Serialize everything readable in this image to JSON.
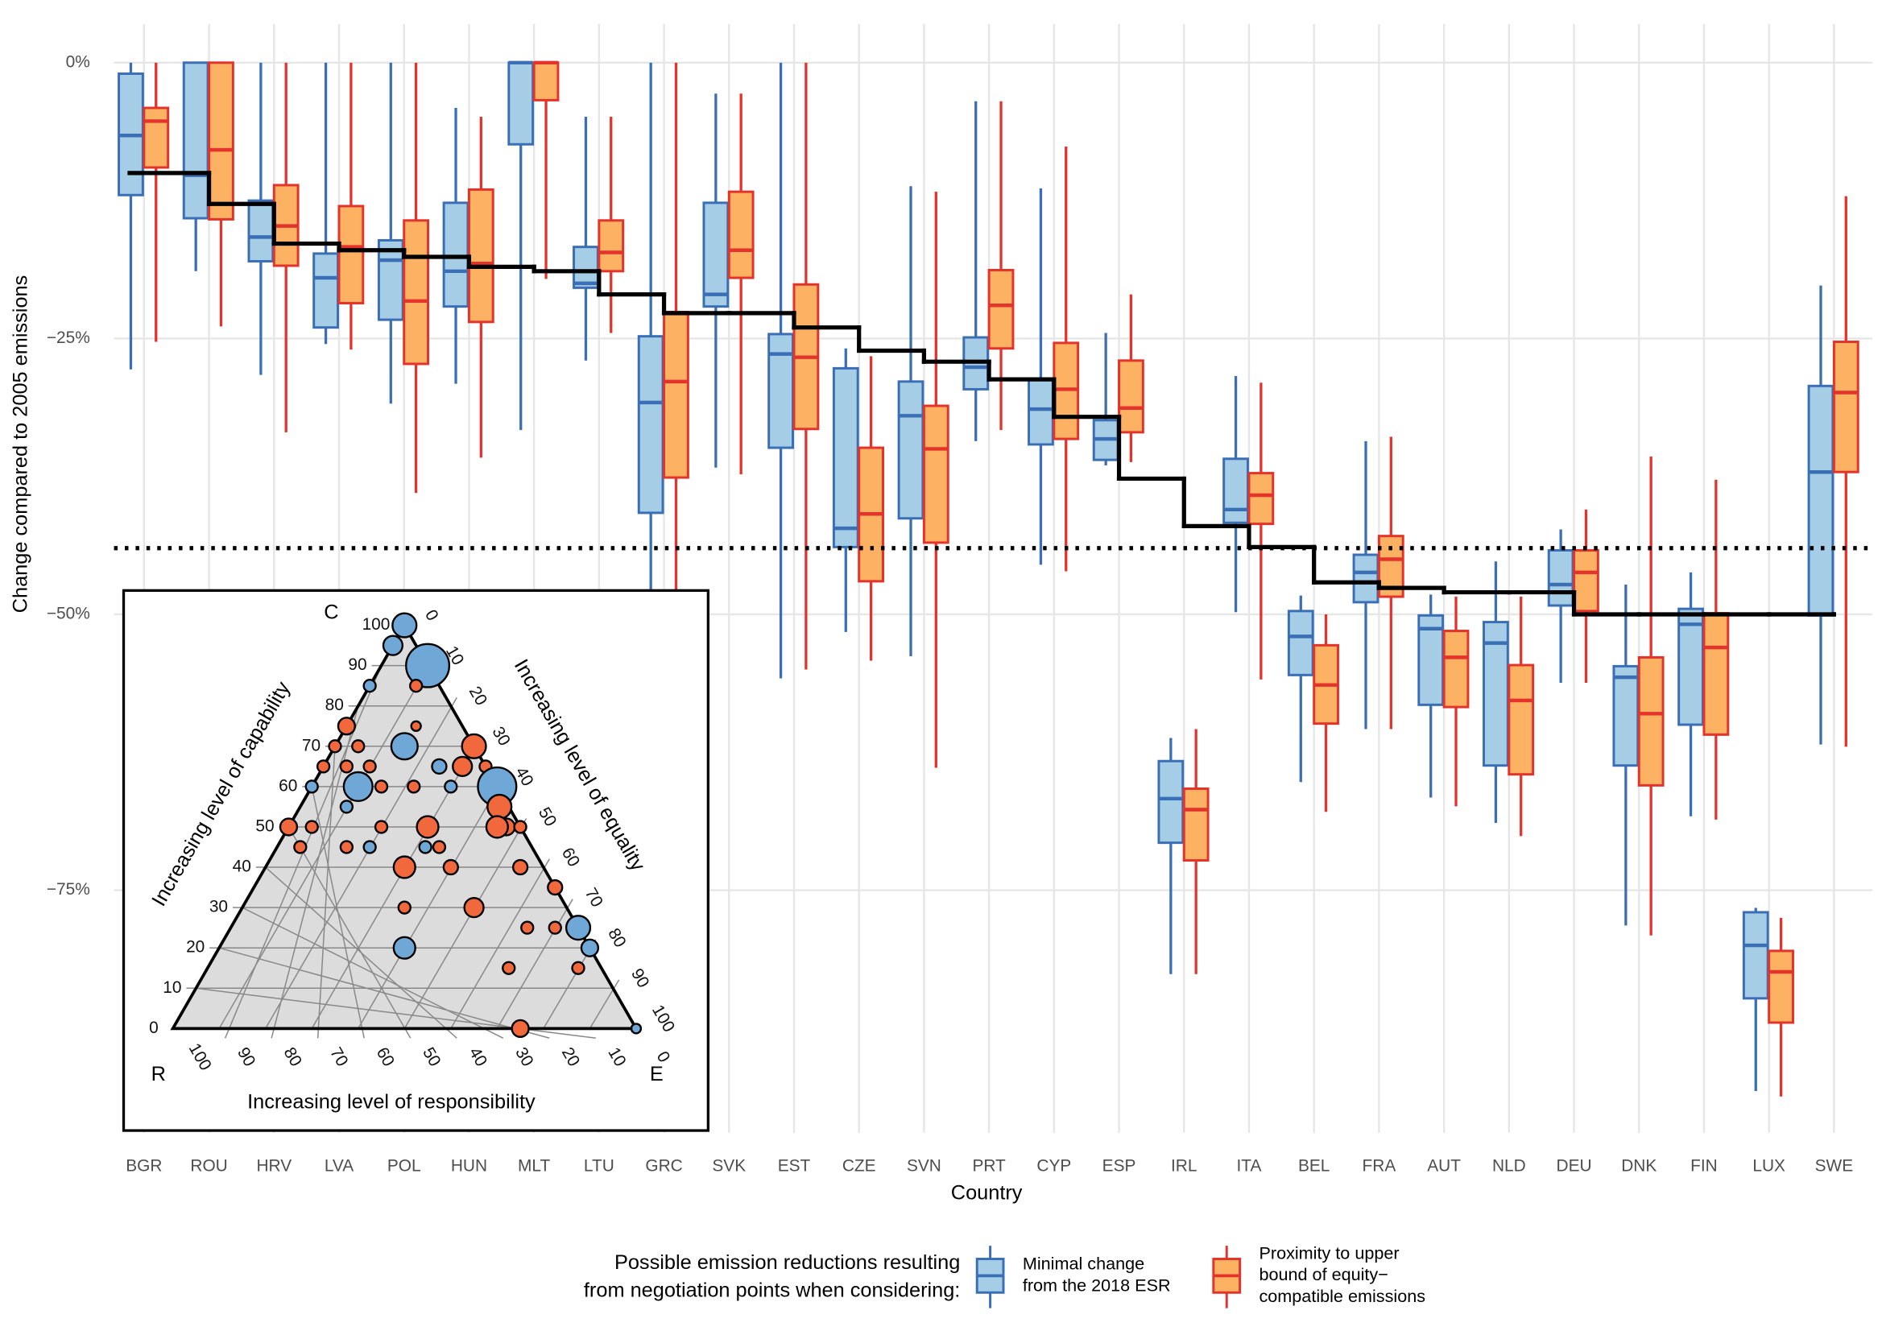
{
  "chart_data": [
    {
      "type": "box",
      "y_label": "Change compared to 2005 emissions",
      "x_label": "Country",
      "legend_title": [
        "Possible emission reductions resulting",
        "from negotiation points when considering:"
      ],
      "categories": [
        "BGR",
        "ROU",
        "HRV",
        "LVA",
        "POL",
        "HUN",
        "MLT",
        "LTU",
        "GRC",
        "SVK",
        "EST",
        "CZE",
        "SVN",
        "PRT",
        "CYP",
        "ESP",
        "IRL",
        "ITA",
        "BEL",
        "FRA",
        "AUT",
        "NLD",
        "DEU",
        "DNK",
        "FIN",
        "LUX",
        "SWE"
      ],
      "ylim": [
        -97,
        3.5
      ],
      "yticks": [
        {
          "value": 0,
          "label": "0%"
        },
        {
          "value": -25,
          "label": "−25%"
        },
        {
          "value": -50,
          "label": "−50%"
        },
        {
          "value": -75,
          "label": "−75%"
        }
      ],
      "grid": true,
      "series": [
        {
          "name": [
            "Minimal change",
            "from the 2018 ESR"
          ],
          "color": "#3a6fb5",
          "fill": "#a6cde6",
          "values": [
            [
              0,
              -1,
              -6.6,
              -12,
              -27.8
            ],
            [
              0,
              0,
              -10.2,
              -14.1,
              -18.9
            ],
            [
              0,
              -12.5,
              -15.8,
              -18,
              -28.3
            ],
            [
              0,
              -17.3,
              -19.5,
              -24,
              -25.5
            ],
            [
              0,
              -16.1,
              -17.9,
              -23.3,
              -30.9
            ],
            [
              -4.1,
              -12.7,
              -18.9,
              -22.1,
              -29.1
            ],
            [
              0,
              0,
              0,
              -7.4,
              -33.3
            ],
            [
              -4.9,
              -16.7,
              -20,
              -20.4,
              -27
            ],
            [
              0,
              -24.8,
              -30.8,
              -40.8,
              -48.2
            ],
            [
              -2.8,
              -12.7,
              -21,
              -22.1,
              -36.7
            ],
            [
              0,
              -24.6,
              -26.4,
              -34.9,
              -55.8
            ],
            [
              -25.9,
              -27.7,
              -42.2,
              -43.9,
              -51.6
            ],
            [
              -11.2,
              -28.9,
              -32,
              -41.3,
              -53.8
            ],
            [
              -3.5,
              -24.9,
              -27.6,
              -29.6,
              -34.3
            ],
            [
              -11.4,
              -28.7,
              -31.4,
              -34.6,
              -45.5
            ],
            [
              -24.5,
              -32.4,
              -34.1,
              -36,
              -36.5
            ],
            [
              -61.2,
              -63.3,
              -66.7,
              -70.7,
              -82.6
            ],
            [
              -28.4,
              -35.9,
              -40.5,
              -41.7,
              -49.8
            ],
            [
              -48.3,
              -49.7,
              -52,
              -55.5,
              -65.2
            ],
            [
              -34.3,
              -44.6,
              -46.2,
              -48.9,
              -60.4
            ],
            [
              -48.2,
              -50.1,
              -51.3,
              -58.2,
              -66.6
            ],
            [
              -45.2,
              -50.7,
              -52.6,
              -63.7,
              -68.9
            ],
            [
              -42.3,
              -44.2,
              -47.3,
              -49.2,
              -56.2
            ],
            [
              -47.3,
              -54.7,
              -55.7,
              -63.7,
              -78.2
            ],
            [
              -46.2,
              -49.5,
              -50.9,
              -60,
              -68.3
            ],
            [
              -76.6,
              -77,
              -80,
              -84.8,
              -93.2
            ],
            [
              -20.2,
              -29.3,
              -37.1,
              -50.1,
              -61.8
            ]
          ]
        },
        {
          "name": [
            "Proximity to upper",
            "bound of equity−",
            "compatible emissions"
          ],
          "color": "#e3332b",
          "fill": "#fdb162",
          "values": [
            [
              0,
              -4.1,
              -5.3,
              -9.5,
              -25.3
            ],
            [
              0,
              0,
              -7.9,
              -14.2,
              -23.9
            ],
            [
              0,
              -11.1,
              -14.8,
              -18.4,
              -33.5
            ],
            [
              0,
              -13,
              -16.7,
              -21.8,
              -26
            ],
            [
              0,
              -14.3,
              -21.6,
              -27.3,
              -39
            ],
            [
              -4.9,
              -11.5,
              -18.2,
              -23.5,
              -35.8
            ],
            [
              0,
              0,
              0,
              -3.4,
              -19.6
            ],
            [
              -4.9,
              -14.3,
              -17.2,
              -18.9,
              -24.5
            ],
            [
              0,
              -22.6,
              -28.9,
              -37.6,
              -48.2
            ],
            [
              -2.8,
              -11.7,
              -17,
              -19.5,
              -37.3
            ],
            [
              0,
              -20.1,
              -26.7,
              -33.2,
              -55
            ],
            [
              -26.6,
              -34.9,
              -40.9,
              -47,
              -54.2
            ],
            [
              -11.7,
              -31.1,
              -35,
              -43.5,
              -63.9
            ],
            [
              -3.5,
              -18.8,
              -22,
              -25.9,
              -33.3
            ],
            [
              -7.6,
              -25.4,
              -29.6,
              -34.1,
              -46.1
            ],
            [
              -21,
              -27,
              -31.3,
              -33.5,
              -36.2
            ],
            [
              -60.4,
              -65.8,
              -67.7,
              -72.3,
              -82.6
            ],
            [
              -29,
              -37.2,
              -39.2,
              -41.8,
              -55.9
            ],
            [
              -50,
              -52.8,
              -56.4,
              -59.9,
              -67.9
            ],
            [
              -33.9,
              -42.9,
              -45,
              -48.4,
              -60.4
            ],
            [
              -48.4,
              -51.5,
              -53.9,
              -58.4,
              -67.4
            ],
            [
              -48.4,
              -54.6,
              -57.8,
              -64.5,
              -70.1
            ],
            [
              -40.5,
              -44.2,
              -46.2,
              -49.7,
              -56.2
            ],
            [
              -35.7,
              -53.9,
              -59,
              -65.5,
              -79.1
            ],
            [
              -37.8,
              -49.9,
              -53,
              -60.9,
              -68.6
            ],
            [
              -77.5,
              -80.5,
              -82.4,
              -87,
              -93.7
            ],
            [
              -12.1,
              -25.3,
              -29.9,
              -37.1,
              -62
            ]
          ]
        }
      ],
      "step_line": {
        "color": "#000000",
        "values": [
          -10,
          -12.8,
          -16.4,
          -17,
          -17.6,
          -18.5,
          -18.9,
          -21,
          -22.7,
          -22.7,
          -24,
          -26.1,
          -27.1,
          -28.7,
          -32.1,
          -37.7,
          -42,
          -43.9,
          -47.1,
          -47.6,
          -48,
          -48,
          -50,
          -50,
          -50,
          -50,
          -50
        ]
      },
      "reference_line": -44
    },
    {
      "type": "ternary",
      "corner_labels": {
        "top": "C",
        "left": "R",
        "right": "E"
      },
      "capability_title": "Increasing level of capability",
      "equality_title": "Increasing level of equality",
      "responsibility_title": "Increasing level of responsibility",
      "ticks": [
        0,
        10,
        20,
        30,
        40,
        50,
        60,
        70,
        80,
        90,
        100
      ],
      "points": [
        {
          "c": 100,
          "e": 0,
          "size": 10,
          "color": "#6fa8d6"
        },
        {
          "c": 90,
          "e": 10,
          "size": 18,
          "color": "#6fa8d6"
        },
        {
          "c": 95,
          "e": 0,
          "size": 8,
          "color": "#6fa8d6"
        },
        {
          "c": 85,
          "e": 10,
          "size": 5,
          "color": "#f0683c"
        },
        {
          "c": 85,
          "e": 0,
          "size": 5,
          "color": "#6fa8d6"
        },
        {
          "c": 75,
          "e": 15,
          "size": 4,
          "color": "#f0683c"
        },
        {
          "c": 75,
          "e": 0,
          "size": 7,
          "color": "#f0683c"
        },
        {
          "c": 70,
          "e": 15,
          "size": 11,
          "color": "#6fa8d6"
        },
        {
          "c": 70,
          "e": 30,
          "size": 10,
          "color": "#f0683c"
        },
        {
          "c": 70,
          "e": 0,
          "size": 5,
          "color": "#f0683c"
        },
        {
          "c": 70,
          "e": 5,
          "size": 5,
          "color": "#f0683c"
        },
        {
          "c": 65,
          "e": 35,
          "size": 5,
          "color": "#f0683c"
        },
        {
          "c": 65,
          "e": 25,
          "size": 6,
          "color": "#6fa8d6"
        },
        {
          "c": 65,
          "e": 30,
          "size": 8,
          "color": "#f0683c"
        },
        {
          "c": 65,
          "e": 5,
          "size": 5,
          "color": "#f0683c"
        },
        {
          "c": 65,
          "e": 10,
          "size": 5,
          "color": "#f0683c"
        },
        {
          "c": 65,
          "e": 0,
          "size": 5,
          "color": "#f0683c"
        },
        {
          "c": 60,
          "e": 40,
          "size": 16,
          "color": "#6fa8d6"
        },
        {
          "c": 60,
          "e": 30,
          "size": 5,
          "color": "#6fa8d6"
        },
        {
          "c": 60,
          "e": 10,
          "size": 12,
          "color": "#6fa8d6"
        },
        {
          "c": 60,
          "e": 0,
          "size": 5,
          "color": "#6fa8d6"
        },
        {
          "c": 60,
          "e": 15,
          "size": 5,
          "color": "#f0683c"
        },
        {
          "c": 60,
          "e": 22,
          "size": 5,
          "color": "#f0683c"
        },
        {
          "c": 55,
          "e": 43,
          "size": 10,
          "color": "#f0683c"
        },
        {
          "c": 55,
          "e": 10,
          "size": 5,
          "color": "#6fa8d6"
        },
        {
          "c": 50,
          "e": 47,
          "size": 7,
          "color": "#f0683c"
        },
        {
          "c": 50,
          "e": 50,
          "size": 5,
          "color": "#f0683c"
        },
        {
          "c": 50,
          "e": 0,
          "size": 7,
          "color": "#f0683c"
        },
        {
          "c": 50,
          "e": 5,
          "size": 5,
          "color": "#f0683c"
        },
        {
          "c": 50,
          "e": 20,
          "size": 5,
          "color": "#f0683c"
        },
        {
          "c": 50,
          "e": 30,
          "size": 9,
          "color": "#f0683c"
        },
        {
          "c": 50,
          "e": 45,
          "size": 9,
          "color": "#f0683c"
        },
        {
          "c": 45,
          "e": 5,
          "size": 5,
          "color": "#f0683c"
        },
        {
          "c": 45,
          "e": 15,
          "size": 5,
          "color": "#f0683c"
        },
        {
          "c": 45,
          "e": 20,
          "size": 5,
          "color": "#6fa8d6"
        },
        {
          "c": 45,
          "e": 32,
          "size": 5,
          "color": "#6fa8d6"
        },
        {
          "c": 45,
          "e": 35,
          "size": 5,
          "color": "#f0683c"
        },
        {
          "c": 40,
          "e": 30,
          "size": 9,
          "color": "#f0683c"
        },
        {
          "c": 40,
          "e": 40,
          "size": 6,
          "color": "#f0683c"
        },
        {
          "c": 40,
          "e": 55,
          "size": 6,
          "color": "#f0683c"
        },
        {
          "c": 35,
          "e": 65,
          "size": 6,
          "color": "#f0683c"
        },
        {
          "c": 30,
          "e": 35,
          "size": 5,
          "color": "#f0683c"
        },
        {
          "c": 30,
          "e": 50,
          "size": 8,
          "color": "#f0683c"
        },
        {
          "c": 25,
          "e": 75,
          "size": 10,
          "color": "#6fa8d6"
        },
        {
          "c": 25,
          "e": 64,
          "size": 5,
          "color": "#f0683c"
        },
        {
          "c": 25,
          "e": 70,
          "size": 5,
          "color": "#f0683c"
        },
        {
          "c": 20,
          "e": 80,
          "size": 7,
          "color": "#6fa8d6"
        },
        {
          "c": 20,
          "e": 40,
          "size": 9,
          "color": "#6fa8d6"
        },
        {
          "c": 15,
          "e": 65,
          "size": 5,
          "color": "#f0683c"
        },
        {
          "c": 15,
          "e": 80,
          "size": 5,
          "color": "#f0683c"
        },
        {
          "c": 0,
          "e": 75,
          "size": 7,
          "color": "#f0683c"
        },
        {
          "c": 0,
          "e": 100,
          "size": 4,
          "color": "#6fa8d6"
        }
      ]
    }
  ]
}
